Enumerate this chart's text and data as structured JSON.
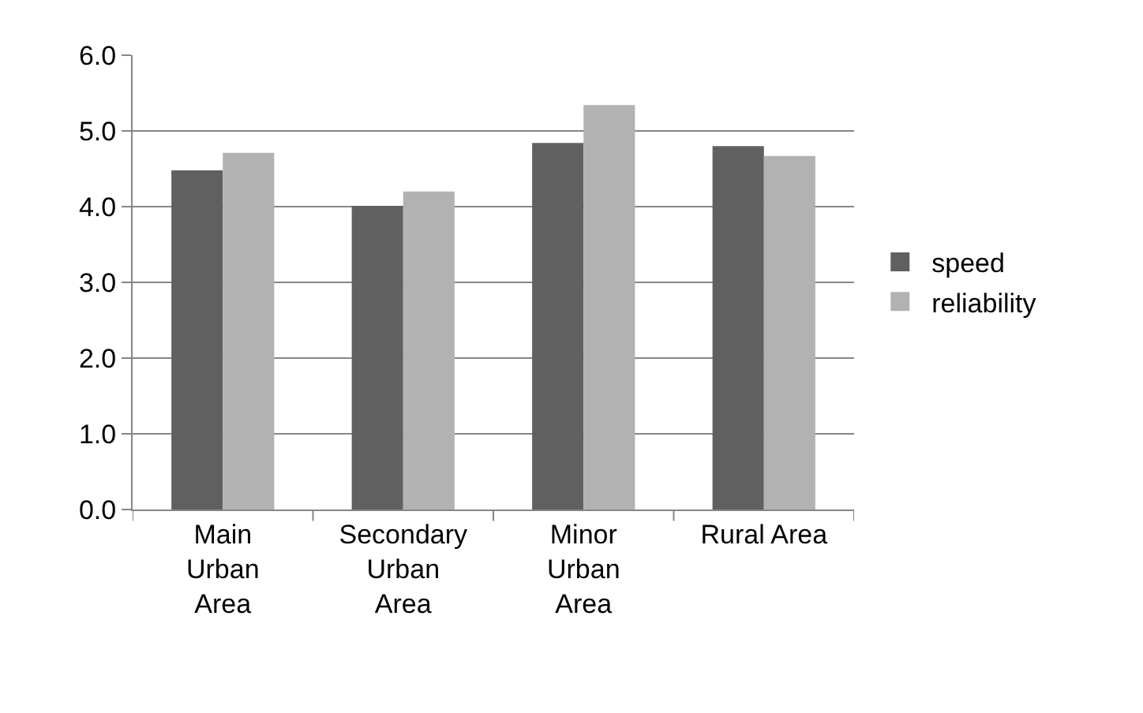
{
  "chart_data": {
    "type": "bar",
    "categories": [
      "Main\nUrban\nArea",
      "Secondary\nUrban\nArea",
      "Minor\nUrban\nArea",
      "Rural Area"
    ],
    "series": [
      {
        "name": "speed",
        "color": "#606060",
        "values": [
          4.48,
          4.01,
          4.84,
          4.8
        ]
      },
      {
        "name": "reliability",
        "color": "#b2b2b2",
        "values": [
          4.71,
          4.2,
          5.34,
          4.67
        ]
      }
    ],
    "ylim": [
      0,
      6
    ],
    "yticks": [
      {
        "value": 0,
        "label": "0.0"
      },
      {
        "value": 1,
        "label": "1.0"
      },
      {
        "value": 2,
        "label": "2.0"
      },
      {
        "value": 3,
        "label": "3.0"
      },
      {
        "value": 4,
        "label": "4.0"
      },
      {
        "value": 5,
        "label": "5.0"
      },
      {
        "value": 6,
        "label": "6.0"
      }
    ],
    "grid": "y",
    "legend": "right"
  }
}
